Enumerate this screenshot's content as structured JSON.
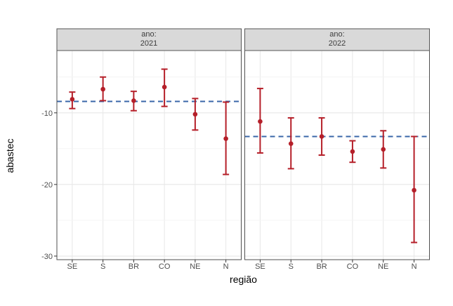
{
  "chart_data": {
    "type": "pointrange",
    "xlabel": "região",
    "ylabel": "abastec",
    "y_ticks": [
      -10,
      -20,
      -30
    ],
    "y_minor_ticks": [
      -5,
      -15,
      -25
    ],
    "y_domain_top": -1.3,
    "y_domain_bottom": -30.5,
    "categories": [
      "SE",
      "S",
      "BR",
      "CO",
      "NE",
      "N"
    ],
    "facets": [
      {
        "strip_line1": "ano:",
        "strip_line2": "2021",
        "ref_line": -8.4,
        "points": [
          {
            "category": "SE",
            "estimate": -8.1,
            "ci_low": -9.4,
            "ci_high": -7.1
          },
          {
            "category": "S",
            "estimate": -6.7,
            "ci_low": -8.3,
            "ci_high": -5.0
          },
          {
            "category": "BR",
            "estimate": -8.3,
            "ci_low": -9.7,
            "ci_high": -7.0
          },
          {
            "category": "CO",
            "estimate": -6.4,
            "ci_low": -9.1,
            "ci_high": -3.9
          },
          {
            "category": "NE",
            "estimate": -10.2,
            "ci_low": -12.4,
            "ci_high": -8.0
          },
          {
            "category": "N",
            "estimate": -13.6,
            "ci_low": -18.6,
            "ci_high": -8.5
          }
        ]
      },
      {
        "strip_line1": "ano:",
        "strip_line2": "2022",
        "ref_line": -13.3,
        "points": [
          {
            "category": "SE",
            "estimate": -11.2,
            "ci_low": -15.6,
            "ci_high": -6.6
          },
          {
            "category": "S",
            "estimate": -14.3,
            "ci_low": -17.8,
            "ci_high": -10.7
          },
          {
            "category": "BR",
            "estimate": -13.3,
            "ci_low": -15.9,
            "ci_high": -10.7
          },
          {
            "category": "CO",
            "estimate": -15.4,
            "ci_low": -16.9,
            "ci_high": -13.9
          },
          {
            "category": "NE",
            "estimate": -15.1,
            "ci_low": -17.7,
            "ci_high": -12.5
          },
          {
            "category": "N",
            "estimate": -20.8,
            "ci_low": -28.1,
            "ci_high": -13.3
          }
        ]
      }
    ],
    "colors": {
      "point": "#b51f29",
      "ref_line": "#3a67a8",
      "strip_fill": "#d9d9d9",
      "strip_border": "#565656",
      "panel_border": "#4f4f4f",
      "grid_major": "#e7e7e7",
      "grid_minor": "#f4f4f4",
      "tick": "#333333",
      "tick_label": "#4d4d4d"
    },
    "legend": "none",
    "grid": "on"
  }
}
